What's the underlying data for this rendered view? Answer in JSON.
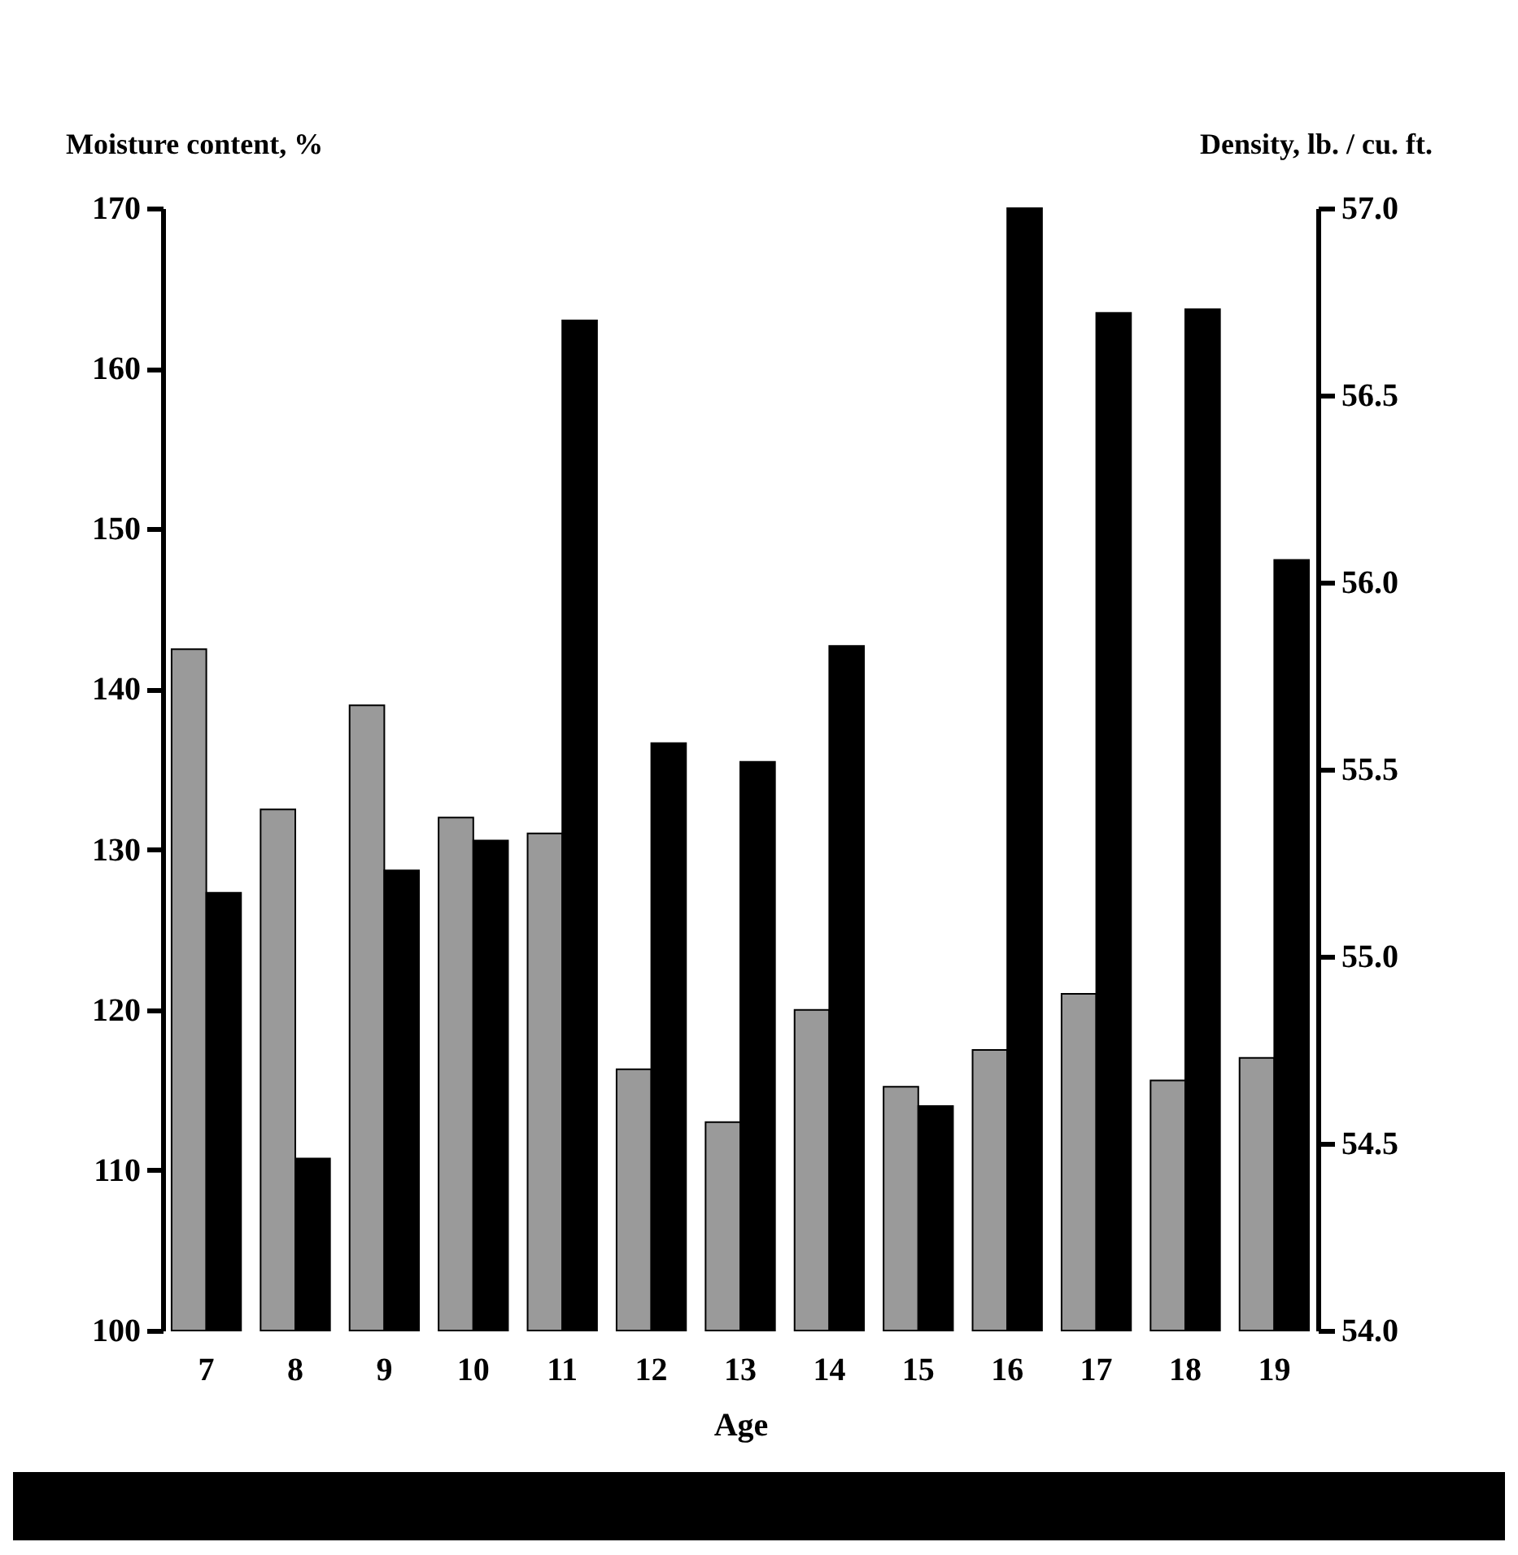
{
  "chart_data": {
    "type": "bar",
    "xlabel": "Age",
    "ylabel": "Moisture content, %",
    "y2label": "Density, lb. / cu. ft.",
    "categories": [
      "7",
      "8",
      "9",
      "10",
      "11",
      "12",
      "13",
      "14",
      "15",
      "16",
      "17",
      "18",
      "19"
    ],
    "series": [
      {
        "color": "#9a9a9a",
        "values": [
          142.5,
          132.5,
          139,
          132,
          131,
          116.3,
          113,
          120,
          115.2,
          117.5,
          121,
          115.6,
          117
        ]
      },
      {
        "color": "#000000",
        "axis": "y2",
        "values": [
          55.17,
          54.46,
          55.23,
          55.31,
          56.7,
          55.57,
          55.52,
          55.83,
          54.6,
          57.0,
          56.72,
          56.73,
          56.06
        ]
      }
    ],
    "ylim": [
      100,
      170
    ],
    "yticks": [
      100,
      110,
      120,
      130,
      140,
      150,
      160,
      170
    ],
    "y2lim": [
      54.0,
      57.0
    ],
    "y2ticks": [
      {
        "value": 54.0,
        "label": "54.0"
      },
      {
        "value": 54.5,
        "label": "54.5"
      },
      {
        "value": 55.0,
        "label": "55.0"
      },
      {
        "value": 55.5,
        "label": "55.5"
      },
      {
        "value": 56.0,
        "label": "56.0"
      },
      {
        "value": 56.5,
        "label": "56.5"
      },
      {
        "value": 57.0,
        "label": "57.0"
      }
    ],
    "grid": false
  }
}
